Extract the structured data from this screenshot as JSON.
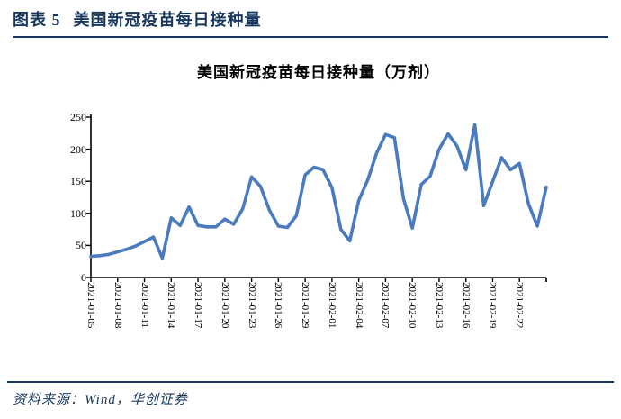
{
  "page": {
    "exhibit_label": "图表 5",
    "exhibit_title": "美国新冠疫苗每日接种量",
    "source_note": "资料来源：Wind，华创证券"
  },
  "colors": {
    "accent_navy": "#17375E",
    "line_blue": "#4A7BBE",
    "axis_black": "#000000"
  },
  "chart_data": {
    "type": "line",
    "title": "美国新冠疫苗每日接种量（万剂）",
    "series_name": "美国新冠疫苗每日接种量",
    "unit": "万剂",
    "grid": false,
    "legend_position": "none",
    "ylim": [
      0,
      250
    ],
    "y_ticks": [
      0,
      50,
      100,
      150,
      200,
      250
    ],
    "x_tick_labels": [
      "2021-01-05",
      "2021-01-08",
      "2021-01-11",
      "2021-01-14",
      "2021-01-17",
      "2021-01-20",
      "2021-01-23",
      "2021-01-26",
      "2021-01-29",
      "2021-02-01",
      "2021-02-04",
      "2021-02-07",
      "2021-02-10",
      "2021-02-13",
      "2021-02-16",
      "2021-02-19",
      "2021-02-22"
    ],
    "x_tick_interval_days": 3,
    "x": [
      "2021-01-05",
      "2021-01-06",
      "2021-01-07",
      "2021-01-08",
      "2021-01-09",
      "2021-01-10",
      "2021-01-11",
      "2021-01-12",
      "2021-01-13",
      "2021-01-14",
      "2021-01-15",
      "2021-01-16",
      "2021-01-17",
      "2021-01-18",
      "2021-01-19",
      "2021-01-20",
      "2021-01-21",
      "2021-01-22",
      "2021-01-23",
      "2021-01-24",
      "2021-01-25",
      "2021-01-26",
      "2021-01-27",
      "2021-01-28",
      "2021-01-29",
      "2021-01-30",
      "2021-01-31",
      "2021-02-01",
      "2021-02-02",
      "2021-02-03",
      "2021-02-04",
      "2021-02-05",
      "2021-02-06",
      "2021-02-07",
      "2021-02-08",
      "2021-02-09",
      "2021-02-10",
      "2021-02-11",
      "2021-02-12",
      "2021-02-13",
      "2021-02-14",
      "2021-02-15",
      "2021-02-16",
      "2021-02-17",
      "2021-02-18",
      "2021-02-19",
      "2021-02-20",
      "2021-02-21",
      "2021-02-22",
      "2021-02-23",
      "2021-02-24",
      "2021-02-25"
    ],
    "values": [
      33,
      34,
      36,
      40,
      44,
      49,
      56,
      63,
      30,
      93,
      81,
      110,
      81,
      79,
      79,
      91,
      83,
      107,
      157,
      142,
      105,
      80,
      78,
      96,
      160,
      172,
      168,
      140,
      75,
      57,
      120,
      152,
      194,
      223,
      218,
      123,
      77,
      145,
      158,
      200,
      224,
      205,
      168,
      238,
      112,
      150,
      187,
      168,
      178,
      115,
      80,
      141
    ]
  }
}
